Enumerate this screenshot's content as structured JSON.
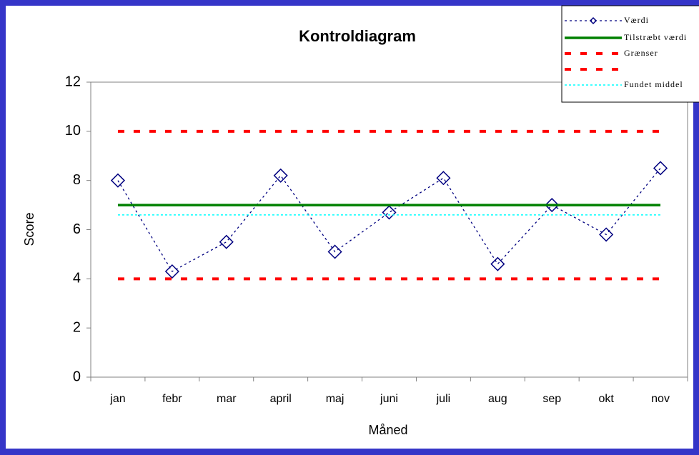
{
  "chart_data": {
    "type": "line",
    "title": "Kontroldiagram",
    "x_label": "Måned",
    "y_label": "Score",
    "categories": [
      "jan",
      "febr",
      "mar",
      "april",
      "maj",
      "juni",
      "juli",
      "aug",
      "sep",
      "okt",
      "nov"
    ],
    "series": [
      {
        "name": "Værdi",
        "color": "#000080",
        "marker": "diamond",
        "values": [
          8,
          4.3,
          5.5,
          8.2,
          5.1,
          6.7,
          8.1,
          4.6,
          7.0,
          5.8,
          8.5
        ]
      },
      {
        "name": "Tilstræbt værdi",
        "color": "#008000",
        "values": [
          7,
          7,
          7,
          7,
          7,
          7,
          7,
          7,
          7,
          7,
          7
        ]
      },
      {
        "name": "Grænser",
        "color": "#ff0000",
        "values": [
          10,
          10,
          10,
          10,
          10,
          10,
          10,
          10,
          10,
          10,
          10
        ]
      },
      {
        "color": "#ff0000",
        "values": [
          4,
          4,
          4,
          4,
          4,
          4,
          4,
          4,
          4,
          4,
          4
        ]
      },
      {
        "name": "Fundet middel",
        "color": "#00ffff",
        "values": [
          6.6,
          6.6,
          6.6,
          6.6,
          6.6,
          6.6,
          6.6,
          6.6,
          6.6,
          6.6,
          6.6
        ]
      }
    ],
    "ylim": [
      0,
      12
    ],
    "yticks": [
      0,
      2,
      4,
      6,
      8,
      10,
      12
    ],
    "legend": "top-right"
  }
}
